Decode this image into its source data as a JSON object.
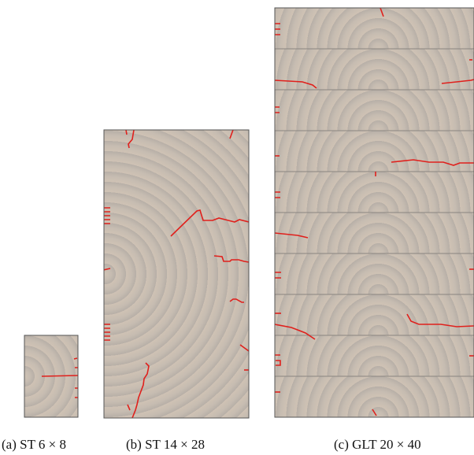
{
  "figure": {
    "panels": [
      {
        "id": "a",
        "caption": "(a) ST 6 × 8"
      },
      {
        "id": "b",
        "caption": "(b) ST 14 × 28"
      },
      {
        "id": "c",
        "caption": "(c) GLT 20 × 40"
      }
    ],
    "colors": {
      "ring_light": "#cfc2b4",
      "ring_dark": "#b8b0a8",
      "crack": "#e0201c",
      "border": "#555555",
      "lamella_line": "#8a8580"
    }
  }
}
